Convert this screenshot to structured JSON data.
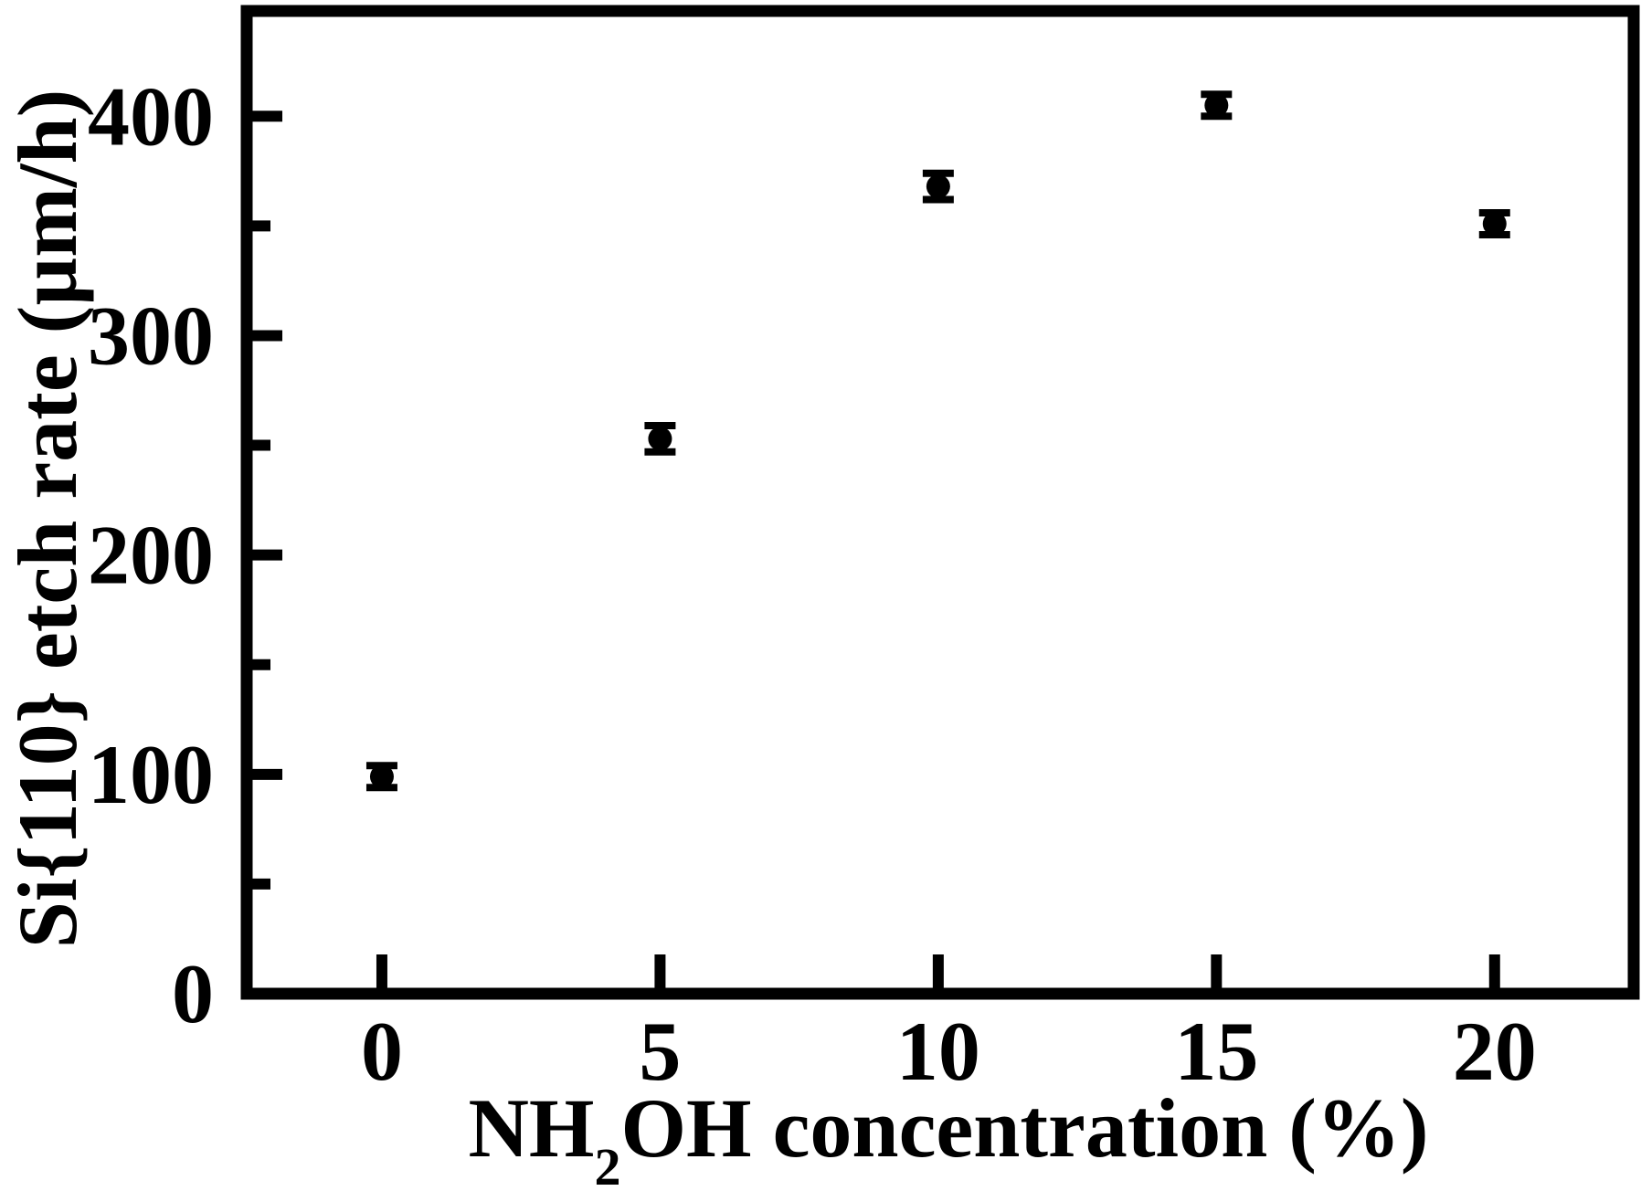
{
  "figure": {
    "background": "#ffffff",
    "foreground": "#000000"
  },
  "chart_data": {
    "type": "scatter",
    "title": "",
    "xlabel_prefix": "NH",
    "xlabel_subscript": "2",
    "xlabel_suffix": "OH concentration (%)",
    "xlabel_full": "NH2OH concentration (%)",
    "ylabel": "Si{110} etch rate (µm/h)",
    "series": [
      {
        "name": "Si{110} etch rate",
        "marker": "filled-circle",
        "color": "#000000",
        "points": [
          {
            "x": 0,
            "y": 99,
            "y_err": 5
          },
          {
            "x": 5,
            "y": 253,
            "y_err": 6
          },
          {
            "x": 10,
            "y": 368,
            "y_err": 6
          },
          {
            "x": 15,
            "y": 405,
            "y_err": 5
          },
          {
            "x": 20,
            "y": 351,
            "y_err": 5
          }
        ]
      }
    ],
    "xlim": [
      -2.43,
      22.5
    ],
    "ylim": [
      0,
      448
    ],
    "x_ticks": {
      "major": [
        0,
        5,
        10,
        15,
        20
      ],
      "labels": [
        "0",
        "5",
        "10",
        "15",
        "20"
      ],
      "minor": []
    },
    "y_ticks": {
      "major": [
        0,
        100,
        200,
        300,
        400
      ],
      "labels": [
        "0",
        "100",
        "200",
        "300",
        "400"
      ],
      "minor": [
        50,
        150,
        250,
        350
      ]
    },
    "grid": false,
    "legend": false,
    "error_bars": "y",
    "tick_direction": "in"
  }
}
